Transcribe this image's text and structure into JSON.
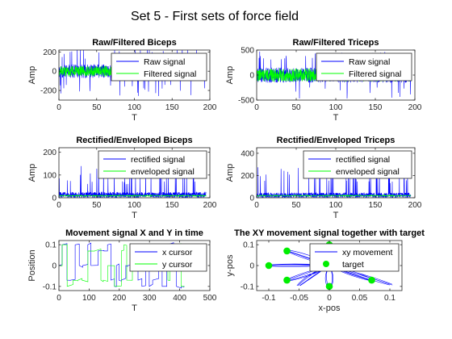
{
  "figure_title": "Set 5 - First sets of force field",
  "colors": {
    "signal_a": "#0000ff",
    "signal_b": "#00ff00",
    "target": "#00ee00",
    "axis": "#262626"
  },
  "chart_data": [
    {
      "type": "line",
      "title": "Raw/Filtered Biceps",
      "xlabel": "T",
      "ylabel": "Amp",
      "xlim": [
        0,
        200
      ],
      "ylim": [
        -300,
        220
      ],
      "xticks": [
        0,
        50,
        100,
        150,
        200
      ],
      "yticks": [
        -200,
        0,
        200
      ],
      "legend": "top-right",
      "series": [
        {
          "name": "Raw signal",
          "color": "#0000ff",
          "t_max": 195,
          "n": 1100,
          "seed": 11,
          "mode": "raw",
          "amp": 70,
          "peak": 260,
          "peak_prob": 0.05
        },
        {
          "name": "Filtered signal",
          "color": "#00ff00",
          "t_max": 195,
          "n": 900,
          "seed": 12,
          "mode": "filtered",
          "amp": 55,
          "active_until": 70
        }
      ]
    },
    {
      "type": "line",
      "title": "Raw/Filtered Triceps",
      "xlabel": "T",
      "ylabel": "Amp",
      "xlim": [
        0,
        200
      ],
      "ylim": [
        -500,
        500
      ],
      "xticks": [
        0,
        50,
        100,
        150,
        200
      ],
      "yticks": [
        -500,
        0,
        500
      ],
      "legend": "top-right",
      "series": [
        {
          "name": "Raw signal",
          "color": "#0000ff",
          "t_max": 195,
          "n": 1100,
          "seed": 21,
          "mode": "raw",
          "amp": 150,
          "peak": 480,
          "peak_prob": 0.04
        },
        {
          "name": "Filtered signal",
          "color": "#00ff00",
          "t_max": 195,
          "n": 1000,
          "seed": 22,
          "mode": "filtered",
          "amp": 130,
          "active_until": 200
        }
      ]
    },
    {
      "type": "line",
      "title": "Rectified/Enveloped Biceps",
      "xlabel": "T",
      "ylabel": "Amp",
      "xlim": [
        0,
        200
      ],
      "ylim": [
        0,
        220
      ],
      "xticks": [
        0,
        50,
        100,
        150,
        200
      ],
      "yticks": [
        0,
        100,
        200
      ],
      "legend": "top-right",
      "series": [
        {
          "name": "rectified signal",
          "color": "#0000ff",
          "t_max": 195,
          "n": 1000,
          "seed": 31,
          "mode": "rect",
          "amp": 25,
          "peak": 150,
          "peak_prob": 0.05
        },
        {
          "name": "enveloped signal",
          "color": "#00ff00",
          "t_max": 195,
          "n": 500,
          "seed": 32,
          "mode": "env",
          "amp": 12
        }
      ]
    },
    {
      "type": "line",
      "title": "Rectified/Enveloped Triceps",
      "xlabel": "T",
      "ylabel": "Amp",
      "xlim": [
        0,
        200
      ],
      "ylim": [
        0,
        450
      ],
      "xticks": [
        0,
        50,
        100,
        150,
        200
      ],
      "yticks": [
        0,
        200,
        400
      ],
      "legend": "top-right",
      "series": [
        {
          "name": "rectified signal",
          "color": "#0000ff",
          "t_max": 195,
          "n": 1000,
          "seed": 41,
          "mode": "rect",
          "amp": 45,
          "peak": 300,
          "peak_prob": 0.05
        },
        {
          "name": "enveloped signal",
          "color": "#00ff00",
          "t_max": 195,
          "n": 500,
          "seed": 42,
          "mode": "env",
          "amp": 25
        }
      ]
    },
    {
      "type": "line",
      "title": "Movement signal X and Y in time",
      "xlabel": "T",
      "ylabel": "Position",
      "xlim": [
        0,
        500
      ],
      "ylim": [
        -0.12,
        0.12
      ],
      "xticks": [
        0,
        100,
        200,
        300,
        400,
        500
      ],
      "yticks": [
        -0.1,
        0,
        0.1
      ],
      "legend": "top-right",
      "series": [
        {
          "name": "x cursor",
          "color": "#0000ff",
          "t_max": 415,
          "seed": 51,
          "mode": "steps"
        },
        {
          "name": "y cursor",
          "color": "#00ff00",
          "t_max": 415,
          "seed": 52,
          "mode": "steps"
        }
      ]
    },
    {
      "type": "scatter",
      "title": "The XY movement signal together with target",
      "xlabel": "x-pos",
      "ylabel": "y-pos",
      "xlim": [
        -0.12,
        0.12
      ],
      "ylim": [
        -0.12,
        0.12
      ],
      "xticks": [
        -0.1,
        -0.05,
        0,
        0.05,
        0.1
      ],
      "yticks": [
        -0.1,
        0,
        0.1
      ],
      "legend": "top-right",
      "series": [
        {
          "name": "xy movement",
          "color": "#0000ff",
          "mode": "paths",
          "seed": 61
        },
        {
          "name": "target",
          "color": "#00ee00",
          "mode": "points"
        }
      ],
      "targets": [
        {
          "x": -0.1,
          "y": 0
        },
        {
          "x": -0.07,
          "y": 0.07
        },
        {
          "x": 0,
          "y": 0.1
        },
        {
          "x": 0.07,
          "y": -0.07
        },
        {
          "x": 0,
          "y": -0.1
        },
        {
          "x": -0.07,
          "y": -0.07
        }
      ]
    }
  ]
}
